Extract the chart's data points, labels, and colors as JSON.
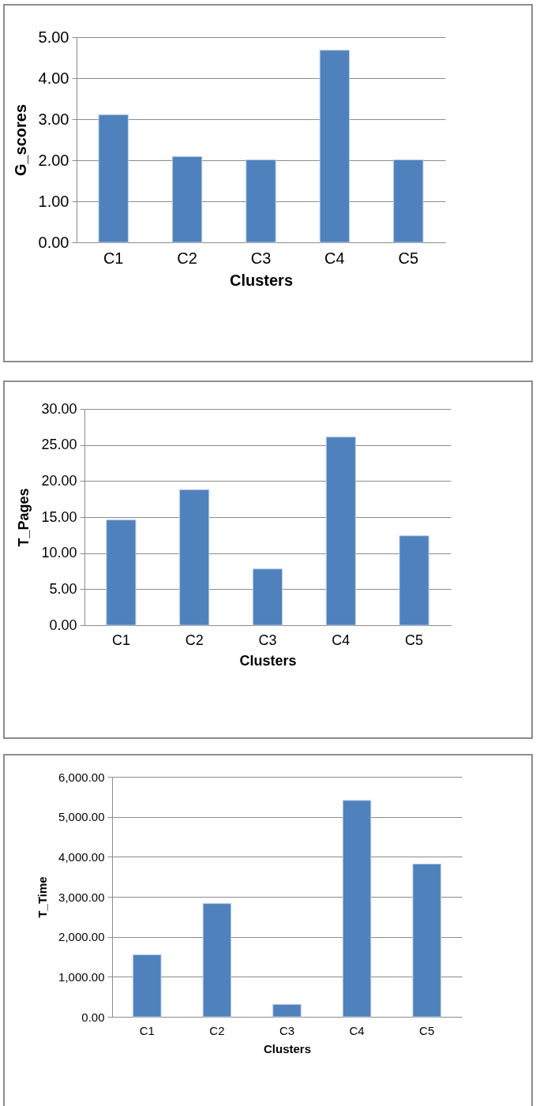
{
  "chart_data": [
    {
      "type": "bar",
      "xlabel": "Clusters",
      "ylabel": "G_scores",
      "categories": [
        "C1",
        "C2",
        "C3",
        "C4",
        "C5"
      ],
      "values": [
        3.11,
        2.09,
        2.01,
        4.68,
        2.01
      ],
      "color": "#4f81bd",
      "ylim": [
        0,
        5
      ],
      "yticks": [
        {
          "value": 0,
          "label": "0.00"
        },
        {
          "value": 1,
          "label": "1.00"
        },
        {
          "value": 2,
          "label": "2.00"
        },
        {
          "value": 3,
          "label": "3.00"
        },
        {
          "value": 4,
          "label": "4.00"
        },
        {
          "value": 5,
          "label": "5.00"
        }
      ],
      "grid": "y"
    },
    {
      "type": "bar",
      "xlabel": "Clusters",
      "ylabel": "T_Pages",
      "categories": [
        "C1",
        "C2",
        "C3",
        "C4",
        "C5"
      ],
      "values": [
        14.6,
        18.8,
        7.8,
        26.1,
        12.4
      ],
      "color": "#4f81bd",
      "ylim": [
        0,
        30
      ],
      "yticks": [
        {
          "value": 0,
          "label": "0.00"
        },
        {
          "value": 5,
          "label": "5.00"
        },
        {
          "value": 10,
          "label": "10.00"
        },
        {
          "value": 15,
          "label": "15.00"
        },
        {
          "value": 20,
          "label": "20.00"
        },
        {
          "value": 25,
          "label": "25.00"
        },
        {
          "value": 30,
          "label": "30.00"
        }
      ],
      "grid": "y"
    },
    {
      "type": "bar",
      "xlabel": "Clusters",
      "ylabel": "T_Time",
      "categories": [
        "C1",
        "C2",
        "C3",
        "C4",
        "C5"
      ],
      "values": [
        1550,
        2830,
        310,
        5410,
        3820
      ],
      "color": "#4f81bd",
      "ylim": [
        0,
        6000
      ],
      "yticks": [
        {
          "value": 0,
          "label": "0.00"
        },
        {
          "value": 1000,
          "label": "1,000.00"
        },
        {
          "value": 2000,
          "label": "2,000.00"
        },
        {
          "value": 3000,
          "label": "3,000.00"
        },
        {
          "value": 4000,
          "label": "4,000.00"
        },
        {
          "value": 5000,
          "label": "5,000.00"
        },
        {
          "value": 6000,
          "label": "6,000.00"
        }
      ],
      "grid": "y"
    }
  ]
}
